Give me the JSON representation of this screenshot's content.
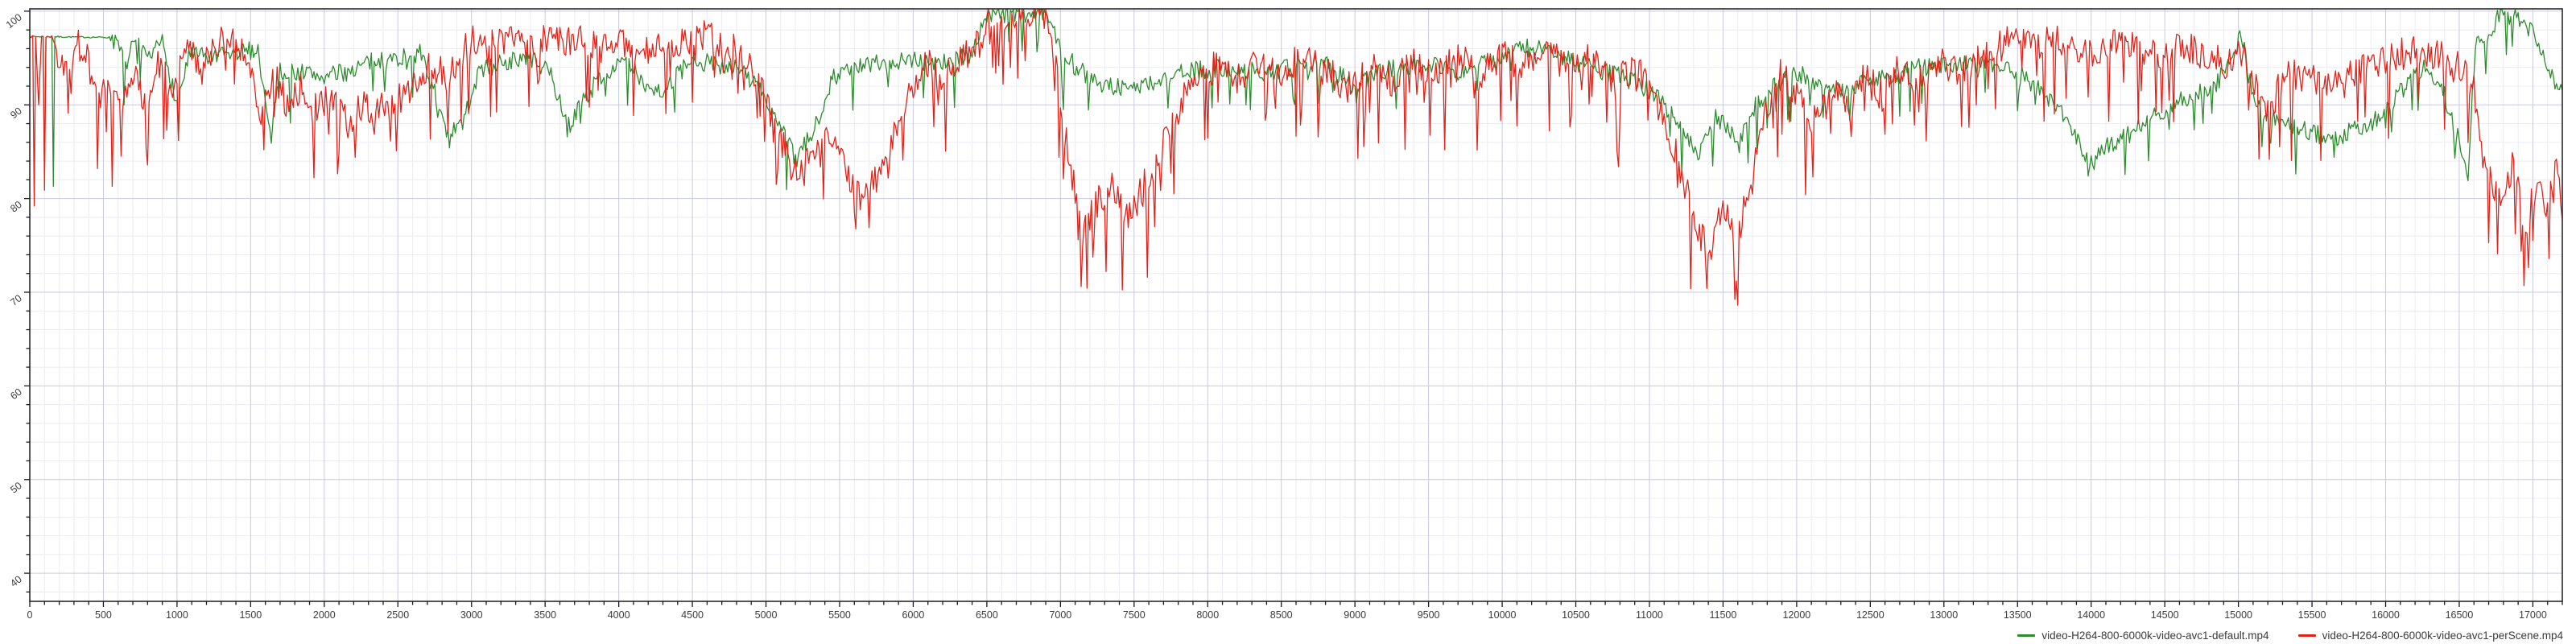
{
  "chart_data": {
    "type": "line",
    "title": "",
    "xlabel": "",
    "ylabel": "",
    "xlim": [
      0,
      17200
    ],
    "ylim": [
      37,
      100.25
    ],
    "grid": {
      "major_color": "#c9c9e0",
      "minor_color": "#ececf2",
      "major_x_step": 500,
      "minor_x_step": 100,
      "major_y_step": 10,
      "minor_y_step": 2
    },
    "axis_color": "#1a1a1a",
    "tick_label_color": "#3d3d3d",
    "background": "#ffffff",
    "legend_position": "bottom-right",
    "x_ticks": [
      0,
      500,
      1000,
      1500,
      2000,
      2500,
      3000,
      3500,
      4000,
      4500,
      5000,
      5500,
      6000,
      6500,
      7000,
      7500,
      8000,
      8500,
      9000,
      9500,
      10000,
      10500,
      11000,
      11500,
      12000,
      12500,
      13000,
      13500,
      14000,
      14500,
      15000,
      15500,
      16000,
      16500,
      17000
    ],
    "y_ticks": [
      100,
      90,
      80,
      70,
      60,
      50,
      40
    ],
    "series": [
      {
        "name": "video-H264-800-6000k-video-avc1-default.mp4",
        "color": "#2e8b2e",
        "line_width": 1.3,
        "band_halfwidth": 1.0,
        "downward_spike_rate": 0.05,
        "downward_spike_depth": 3.2,
        "flat_until": 540,
        "seed": 7,
        "breakpoints": [
          [
            0,
            97.3
          ],
          [
            560,
            97.2
          ],
          [
            650,
            94.5
          ],
          [
            720,
            96.8
          ],
          [
            800,
            94.5
          ],
          [
            900,
            96.8
          ],
          [
            1000,
            90
          ],
          [
            1080,
            95.3
          ],
          [
            1250,
            95
          ],
          [
            1400,
            95.5
          ],
          [
            1550,
            96
          ],
          [
            1630,
            87
          ],
          [
            1700,
            93.5
          ],
          [
            1850,
            93.5
          ],
          [
            2000,
            93
          ],
          [
            2150,
            93.5
          ],
          [
            2300,
            94.5
          ],
          [
            2500,
            95
          ],
          [
            2650,
            95.5
          ],
          [
            2760,
            91
          ],
          [
            2830,
            86.5
          ],
          [
            2940,
            88
          ],
          [
            3050,
            93.5
          ],
          [
            3200,
            94.5
          ],
          [
            3400,
            95
          ],
          [
            3550,
            93
          ],
          [
            3650,
            87.5
          ],
          [
            3760,
            90.5
          ],
          [
            3900,
            93.5
          ],
          [
            4050,
            94.5
          ],
          [
            4200,
            92
          ],
          [
            4300,
            91.5
          ],
          [
            4450,
            94
          ],
          [
            4600,
            94.5
          ],
          [
            4800,
            94
          ],
          [
            4950,
            92
          ],
          [
            5100,
            87.5
          ],
          [
            5200,
            84.2
          ],
          [
            5320,
            87
          ],
          [
            5450,
            93
          ],
          [
            5600,
            94
          ],
          [
            5800,
            94.5
          ],
          [
            6000,
            95
          ],
          [
            6200,
            94.5
          ],
          [
            6400,
            95.5
          ],
          [
            6500,
            99.6
          ],
          [
            6900,
            99.8
          ],
          [
            7000,
            96.5
          ],
          [
            7100,
            94
          ],
          [
            7250,
            92.5
          ],
          [
            7400,
            91.8
          ],
          [
            7550,
            92
          ],
          [
            7700,
            92.8
          ],
          [
            7850,
            93.5
          ],
          [
            8000,
            93.8
          ],
          [
            8200,
            94
          ],
          [
            8400,
            93.5
          ],
          [
            8600,
            94
          ],
          [
            8800,
            94.5
          ],
          [
            9000,
            92
          ],
          [
            9150,
            93.5
          ],
          [
            9300,
            94
          ],
          [
            9500,
            94.5
          ],
          [
            9700,
            93.5
          ],
          [
            9900,
            94.5
          ],
          [
            10050,
            95.5
          ],
          [
            10200,
            96.2
          ],
          [
            10350,
            95.5
          ],
          [
            10500,
            94.5
          ],
          [
            10700,
            93.5
          ],
          [
            10900,
            92.5
          ],
          [
            11050,
            91
          ],
          [
            11200,
            88
          ],
          [
            11330,
            85
          ],
          [
            11450,
            89
          ],
          [
            11600,
            86
          ],
          [
            11720,
            90
          ],
          [
            11850,
            92
          ],
          [
            12000,
            93.5
          ],
          [
            12150,
            92
          ],
          [
            12300,
            91.5
          ],
          [
            12450,
            92.5
          ],
          [
            12600,
            93
          ],
          [
            12800,
            94
          ],
          [
            13000,
            94.2
          ],
          [
            13200,
            94.5
          ],
          [
            13400,
            93.8
          ],
          [
            13550,
            93
          ],
          [
            13700,
            91
          ],
          [
            13850,
            88
          ],
          [
            13990,
            83.5
          ],
          [
            14100,
            85.5
          ],
          [
            14250,
            86.8
          ],
          [
            14400,
            88.5
          ],
          [
            14550,
            90
          ],
          [
            14700,
            91
          ],
          [
            14850,
            92.3
          ],
          [
            14970,
            95
          ],
          [
            15020,
            98
          ],
          [
            15100,
            90.5
          ],
          [
            15220,
            88.5
          ],
          [
            15350,
            87.8
          ],
          [
            15500,
            87
          ],
          [
            15650,
            86.3
          ],
          [
            15800,
            87.5
          ],
          [
            15950,
            88.5
          ],
          [
            16100,
            91.5
          ],
          [
            16250,
            94
          ],
          [
            16380,
            92
          ],
          [
            16480,
            87
          ],
          [
            16560,
            83
          ],
          [
            16610,
            96.3
          ],
          [
            16700,
            96.5
          ],
          [
            16760,
            99.6
          ],
          [
            16900,
            99.3
          ],
          [
            17000,
            97.5
          ],
          [
            17080,
            95
          ],
          [
            17160,
            92
          ],
          [
            17200,
            91
          ]
        ],
        "spikes": [
          [
            100,
            82.6
          ],
          [
            160,
            81.3
          ],
          [
            640,
            90
          ],
          [
            1010,
            86.6
          ],
          [
            1640,
            85.9
          ],
          [
            2850,
            85.4
          ],
          [
            5210,
            83.4
          ],
          [
            7020,
            89.5
          ],
          [
            9010,
            90.2
          ],
          [
            11340,
            84.3
          ],
          [
            11610,
            84.9
          ],
          [
            13980,
            82.4
          ],
          [
            15650,
            84.4
          ],
          [
            16560,
            81.9
          ]
        ]
      },
      {
        "name": "video-H264-800-6000k-video-avc1-perScene.mp4",
        "color": "#e2231a",
        "line_width": 1.3,
        "band_halfwidth": 1.75,
        "downward_spike_rate": 0.12,
        "downward_spike_depth": 7.0,
        "flat_until": 180,
        "seed": 1337,
        "breakpoints": [
          [
            0,
            97.3
          ],
          [
            40,
            97.3
          ],
          [
            60,
            90
          ],
          [
            80,
            97.3
          ],
          [
            150,
            97.3
          ],
          [
            200,
            95
          ],
          [
            260,
            93.5
          ],
          [
            320,
            96.5
          ],
          [
            400,
            95.5
          ],
          [
            470,
            90
          ],
          [
            540,
            92.5
          ],
          [
            620,
            90.5
          ],
          [
            700,
            93.5
          ],
          [
            780,
            90.5
          ],
          [
            870,
            94.5
          ],
          [
            960,
            92
          ],
          [
            1060,
            96.5
          ],
          [
            1160,
            93.5
          ],
          [
            1270,
            96.5
          ],
          [
            1380,
            97
          ],
          [
            1480,
            95
          ],
          [
            1570,
            89.5
          ],
          [
            1660,
            93
          ],
          [
            1750,
            90
          ],
          [
            1840,
            92
          ],
          [
            1930,
            89.5
          ],
          [
            2030,
            91
          ],
          [
            2130,
            88.5
          ],
          [
            2240,
            90
          ],
          [
            2350,
            89
          ],
          [
            2470,
            90.5
          ],
          [
            2600,
            92
          ],
          [
            2720,
            94.5
          ],
          [
            2840,
            93
          ],
          [
            2950,
            96
          ],
          [
            3060,
            97.5
          ],
          [
            3180,
            96.5
          ],
          [
            3300,
            97
          ],
          [
            3420,
            96.3
          ],
          [
            3540,
            97.3
          ],
          [
            3660,
            96.5
          ],
          [
            3780,
            96.8
          ],
          [
            3900,
            96
          ],
          [
            4020,
            96.5
          ],
          [
            4150,
            95.5
          ],
          [
            4280,
            96
          ],
          [
            4420,
            96.8
          ],
          [
            4560,
            97.5
          ],
          [
            4700,
            96.8
          ],
          [
            4850,
            95
          ],
          [
            4980,
            91
          ],
          [
            5100,
            86
          ],
          [
            5200,
            82.5
          ],
          [
            5300,
            85
          ],
          [
            5400,
            87.5
          ],
          [
            5520,
            83.5
          ],
          [
            5640,
            80.8
          ],
          [
            5780,
            82
          ],
          [
            5900,
            88
          ],
          [
            6000,
            92.5
          ],
          [
            6100,
            94.5
          ],
          [
            6220,
            93
          ],
          [
            6350,
            95
          ],
          [
            6450,
            97
          ],
          [
            6550,
            99.7
          ],
          [
            6900,
            99.8
          ],
          [
            6970,
            94
          ],
          [
            7050,
            85
          ],
          [
            7150,
            76.5
          ],
          [
            7250,
            79.5
          ],
          [
            7350,
            82
          ],
          [
            7460,
            78
          ],
          [
            7570,
            81.5
          ],
          [
            7680,
            85
          ],
          [
            7800,
            89.5
          ],
          [
            7920,
            93
          ],
          [
            8050,
            94
          ],
          [
            8200,
            92.5
          ],
          [
            8350,
            95
          ],
          [
            8500,
            93
          ],
          [
            8650,
            95.5
          ],
          [
            8800,
            93.5
          ],
          [
            8950,
            92
          ],
          [
            9100,
            94.5
          ],
          [
            9250,
            92.5
          ],
          [
            9400,
            95
          ],
          [
            9550,
            93
          ],
          [
            9700,
            95.5
          ],
          [
            9850,
            93
          ],
          [
            10000,
            95.5
          ],
          [
            10150,
            94
          ],
          [
            10300,
            96
          ],
          [
            10450,
            93.5
          ],
          [
            10600,
            95
          ],
          [
            10750,
            92.5
          ],
          [
            10900,
            94
          ],
          [
            11050,
            90.5
          ],
          [
            11180,
            85
          ],
          [
            11300,
            78
          ],
          [
            11400,
            74
          ],
          [
            11500,
            80
          ],
          [
            11600,
            75.5
          ],
          [
            11700,
            84
          ],
          [
            11800,
            90
          ],
          [
            11900,
            93.5
          ],
          [
            12000,
            91
          ],
          [
            12100,
            88
          ],
          [
            12220,
            92
          ],
          [
            12340,
            89.5
          ],
          [
            12460,
            93
          ],
          [
            12580,
            91
          ],
          [
            12700,
            94
          ],
          [
            12820,
            92.5
          ],
          [
            12950,
            94.5
          ],
          [
            13100,
            93.5
          ],
          [
            13250,
            95
          ],
          [
            13400,
            96.5
          ],
          [
            13550,
            97.5
          ],
          [
            13700,
            97
          ],
          [
            13850,
            96.5
          ],
          [
            14000,
            95.8
          ],
          [
            14150,
            96.8
          ],
          [
            14300,
            96
          ],
          [
            14450,
            95.3
          ],
          [
            14600,
            96.5
          ],
          [
            14750,
            95.5
          ],
          [
            14900,
            94.3
          ],
          [
            15000,
            96
          ],
          [
            15100,
            92.5
          ],
          [
            15200,
            89
          ],
          [
            15320,
            93.5
          ],
          [
            15460,
            93
          ],
          [
            15600,
            92.7
          ],
          [
            15750,
            93.3
          ],
          [
            15900,
            94
          ],
          [
            16050,
            95
          ],
          [
            16200,
            96
          ],
          [
            16350,
            95.3
          ],
          [
            16500,
            94.3
          ],
          [
            16600,
            92
          ],
          [
            16660,
            84
          ],
          [
            16760,
            80
          ],
          [
            16860,
            83.5
          ],
          [
            16950,
            77
          ],
          [
            17030,
            82
          ],
          [
            17100,
            78.5
          ],
          [
            17160,
            84
          ],
          [
            17200,
            79.5
          ]
        ],
        "spikes": [
          [
            30,
            79.2
          ],
          [
            100,
            80.9
          ],
          [
            460,
            83.2
          ],
          [
            560,
            81.3
          ],
          [
            1010,
            86.2
          ],
          [
            1590,
            85.2
          ],
          [
            2210,
            84.4
          ],
          [
            2490,
            85.1
          ],
          [
            5600,
            78.6
          ],
          [
            6610,
            92.2
          ],
          [
            6760,
            94.7
          ],
          [
            7140,
            70.6
          ],
          [
            7310,
            72.2
          ],
          [
            7590,
            71.6
          ],
          [
            9020,
            84.3
          ],
          [
            9610,
            85.2
          ],
          [
            10790,
            83.4
          ],
          [
            11390,
            70.4
          ],
          [
            11590,
            71.2
          ],
          [
            12110,
            82.3
          ],
          [
            14560,
            88.2
          ],
          [
            15210,
            84.2
          ],
          [
            16760,
            74.1
          ],
          [
            16940,
            70.7
          ],
          [
            17110,
            73.6
          ]
        ]
      }
    ]
  }
}
